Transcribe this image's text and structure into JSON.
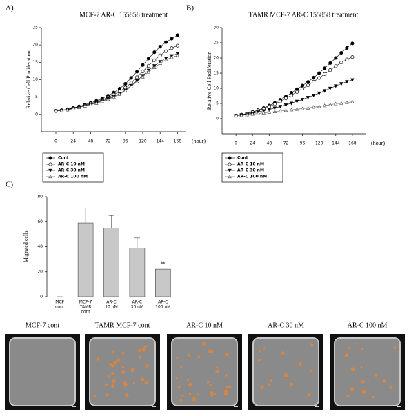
{
  "chart_data": [
    {
      "type": "line",
      "panel": "A)",
      "title": "MCF-7 AR-C 155858 treatment",
      "ylabel": "Relative Cell Proliferation",
      "xlabel": "(hour)",
      "x": [
        0,
        8,
        16,
        24,
        32,
        40,
        48,
        56,
        64,
        72,
        80,
        88,
        96,
        104,
        112,
        120,
        128,
        136,
        144,
        152,
        160,
        168
      ],
      "xlim": [
        -20,
        180
      ],
      "xticks": [
        0,
        24,
        48,
        72,
        96,
        120,
        144,
        168
      ],
      "ylim": [
        -5,
        25
      ],
      "yticks": [
        0,
        5,
        10,
        15,
        20,
        25
      ],
      "series": [
        {
          "name": "Cont",
          "color": "#000000",
          "marker": "filled-circle",
          "values": [
            1,
            1.2,
            1.5,
            1.9,
            2.3,
            2.8,
            3.3,
            3.9,
            4.6,
            5.4,
            6.3,
            7.4,
            8.8,
            10.5,
            12.3,
            14.2,
            16.1,
            17.9,
            19.5,
            20.8,
            21.8,
            22.8
          ]
        },
        {
          "name": "AR-C 10 nM",
          "color": "#000000",
          "marker": "open-circle",
          "values": [
            1,
            1.2,
            1.4,
            1.8,
            2.2,
            2.6,
            3.1,
            3.6,
            4.2,
            4.9,
            5.7,
            6.6,
            7.7,
            9.1,
            10.7,
            12.4,
            14.0,
            15.6,
            17.0,
            18.2,
            19.1,
            19.8
          ]
        },
        {
          "name": "AR-C 30 nM",
          "color": "#000000",
          "marker": "filled-triangle-down",
          "values": [
            1,
            1.1,
            1.4,
            1.7,
            2.1,
            2.5,
            2.9,
            3.4,
            3.9,
            4.5,
            5.2,
            6.0,
            7.0,
            8.3,
            9.7,
            11.2,
            12.7,
            14.0,
            15.2,
            16.2,
            16.9,
            17.5
          ]
        },
        {
          "name": "AR-C 100 nM",
          "color": "#555555",
          "marker": "open-triangle-up",
          "values": [
            1,
            1.1,
            1.3,
            1.6,
            2.0,
            2.4,
            2.8,
            3.2,
            3.7,
            4.3,
            5.0,
            5.8,
            6.8,
            8.0,
            9.4,
            10.8,
            12.2,
            13.5,
            14.7,
            15.7,
            16.4,
            17.0
          ]
        }
      ]
    },
    {
      "type": "line",
      "panel": "B)",
      "title": "TAMR MCF-7 AR-C 155858 treatment",
      "ylabel": "Relative Cell Proliferation",
      "xlabel": "(hour)",
      "x": [
        0,
        8,
        16,
        24,
        32,
        40,
        48,
        56,
        64,
        72,
        80,
        88,
        96,
        104,
        112,
        120,
        128,
        136,
        144,
        152,
        160,
        168
      ],
      "xlim": [
        -20,
        187
      ],
      "xticks": [
        0,
        24,
        48,
        72,
        96,
        120,
        144,
        168
      ],
      "ylim": [
        -5,
        30
      ],
      "yticks": [
        0,
        5,
        10,
        15,
        20,
        25,
        30
      ],
      "series": [
        {
          "name": "Cont",
          "color": "#000000",
          "marker": "filled-circle",
          "values": [
            1,
            1.3,
            1.7,
            2.2,
            2.8,
            3.5,
            4.3,
            5.2,
            6.2,
            7.3,
            8.5,
            9.7,
            10.9,
            12.1,
            13.5,
            15.0,
            16.6,
            18.3,
            20.0,
            21.7,
            23.3,
            24.8
          ]
        },
        {
          "name": "AR-C 10 nM",
          "color": "#000000",
          "marker": "open-circle",
          "values": [
            1,
            1.3,
            1.7,
            2.1,
            2.7,
            3.3,
            4.0,
            4.8,
            5.7,
            6.7,
            7.7,
            8.8,
            9.9,
            11.0,
            12.2,
            13.4,
            14.7,
            16.0,
            17.3,
            18.5,
            19.5,
            20.3
          ]
        },
        {
          "name": "AR-C 30 nM",
          "color": "#000000",
          "marker": "filled-triangle-down",
          "values": [
            1,
            1.2,
            1.5,
            1.8,
            2.2,
            2.6,
            3.0,
            3.5,
            4.0,
            4.5,
            5.1,
            5.7,
            6.3,
            7.0,
            7.7,
            8.4,
            9.2,
            10.0,
            10.8,
            11.5,
            12.2,
            12.8
          ]
        },
        {
          "name": "AR-C 100 nM",
          "color": "#555555",
          "marker": "open-triangle-up",
          "values": [
            1,
            1.1,
            1.3,
            1.5,
            1.7,
            1.9,
            2.1,
            2.3,
            2.5,
            2.7,
            2.9,
            3.1,
            3.3,
            3.5,
            3.8,
            4.0,
            4.3,
            4.6,
            4.9,
            5.1,
            5.3,
            5.5
          ]
        }
      ]
    },
    {
      "type": "bar",
      "panel": "C)",
      "ylabel": "Migrated cells",
      "color": "#c8c8c8",
      "categories": [
        [
          "MCF",
          "cont"
        ],
        [
          "MCF-7",
          "TAMR",
          "cont"
        ],
        [
          "AR-C",
          "10 nM"
        ],
        [
          "AR-C",
          "30 nM"
        ],
        [
          "AR-C",
          "100 nM"
        ]
      ],
      "values": [
        0,
        59,
        55,
        39,
        22
      ],
      "errors": [
        0,
        12,
        10,
        8,
        1
      ],
      "ylim": [
        0,
        80
      ],
      "yticks": [
        0,
        20,
        40,
        60,
        80
      ],
      "annotation": "**"
    }
  ],
  "images": [
    "MCF-7 cont",
    "TAMR MCF-7 cont",
    "AR-C 10 nM",
    "AR-C 30 nM",
    "AR-C 100 nM"
  ]
}
